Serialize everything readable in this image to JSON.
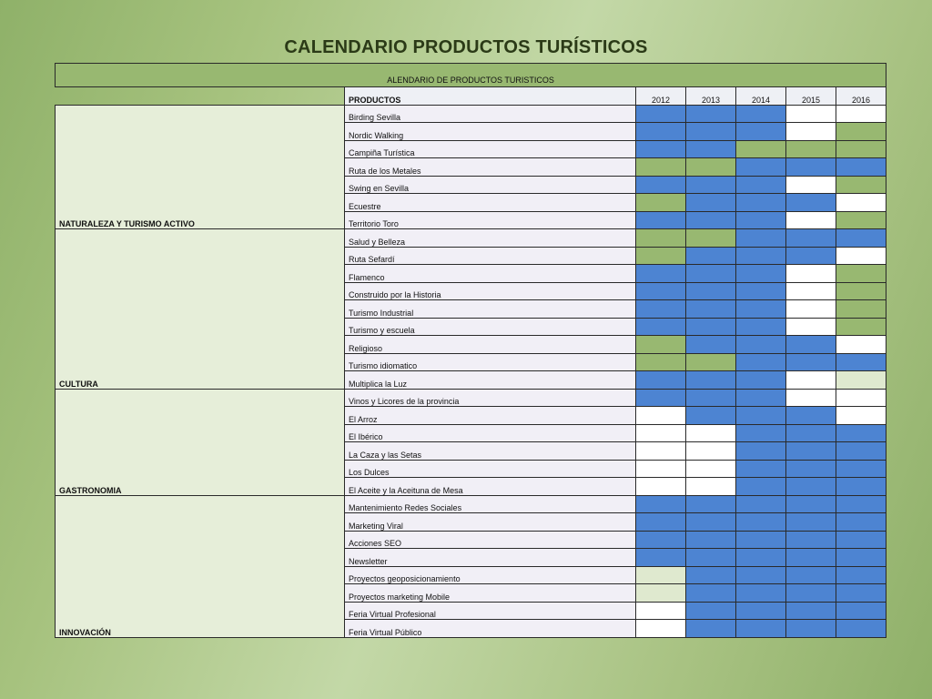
{
  "slide": {
    "title": "CALENDARIO PRODUCTOS TURÍSTICOS"
  },
  "table": {
    "banner": "ALENDARIO DE PRODUCTOS TURISTICOS",
    "products_header": "PRODUCTOS",
    "years": [
      "2012",
      "2013",
      "2014",
      "2015",
      "2016"
    ],
    "legend_colors": {
      "b": "#4d84d2",
      "g": "#98b871",
      "w": "#ffffff",
      "l": "#dfe9cf"
    },
    "categories": [
      {
        "name": "NATURALEZA Y TURISMO ACTIVO",
        "rows": [
          {
            "product": "Birding Sevilla",
            "cells": [
              "b",
              "b",
              "b",
              "w",
              "w"
            ]
          },
          {
            "product": "Nordic Walking",
            "cells": [
              "b",
              "b",
              "b",
              "w",
              "g"
            ]
          },
          {
            "product": "Campiña Turística",
            "cells": [
              "b",
              "b",
              "g",
              "g",
              "g"
            ]
          },
          {
            "product": "Ruta de los Metales",
            "cells": [
              "g",
              "g",
              "b",
              "b",
              "b"
            ]
          },
          {
            "product": "Swing en Sevilla",
            "cells": [
              "b",
              "b",
              "b",
              "w",
              "g"
            ]
          },
          {
            "product": "Ecuestre",
            "cells": [
              "g",
              "b",
              "b",
              "b",
              "w"
            ]
          },
          {
            "product": "Territorio Toro",
            "cells": [
              "b",
              "b",
              "b",
              "w",
              "g"
            ]
          }
        ]
      },
      {
        "name": "CULTURA",
        "rows": [
          {
            "product": "Salud y Belleza",
            "cells": [
              "g",
              "g",
              "b",
              "b",
              "b"
            ]
          },
          {
            "product": "Ruta Sefardí",
            "cells": [
              "g",
              "b",
              "b",
              "b",
              "w"
            ]
          },
          {
            "product": "Flamenco",
            "cells": [
              "b",
              "b",
              "b",
              "w",
              "g"
            ]
          },
          {
            "product": "Construido por la Historia",
            "cells": [
              "b",
              "b",
              "b",
              "w",
              "g"
            ]
          },
          {
            "product": "Turismo Industrial",
            "cells": [
              "b",
              "b",
              "b",
              "w",
              "g"
            ]
          },
          {
            "product": "Turismo y escuela",
            "cells": [
              "b",
              "b",
              "b",
              "w",
              "g"
            ]
          },
          {
            "product": "Religioso",
            "cells": [
              "g",
              "b",
              "b",
              "b",
              "w"
            ]
          },
          {
            "product": "Turismo idiomatico",
            "cells": [
              "g",
              "g",
              "b",
              "b",
              "b"
            ]
          },
          {
            "product": "Multiplica la Luz",
            "cells": [
              "b",
              "b",
              "b",
              "w",
              "l"
            ]
          }
        ]
      },
      {
        "name": "GASTRONOMIA",
        "rows": [
          {
            "product": "Vinos y Licores de la provincia",
            "cells": [
              "b",
              "b",
              "b",
              "w",
              "w"
            ]
          },
          {
            "product": "El Arroz",
            "cells": [
              "w",
              "b",
              "b",
              "b",
              "w"
            ]
          },
          {
            "product": "El Ibérico",
            "cells": [
              "w",
              "w",
              "b",
              "b",
              "b"
            ]
          },
          {
            "product": "La Caza y las Setas",
            "cells": [
              "w",
              "w",
              "b",
              "b",
              "b"
            ]
          },
          {
            "product": "Los Dulces",
            "cells": [
              "w",
              "w",
              "b",
              "b",
              "b"
            ]
          },
          {
            "product": "El Aceite y la Aceituna de Mesa",
            "cells": [
              "w",
              "w",
              "b",
              "b",
              "b"
            ]
          }
        ]
      },
      {
        "name": "INNOVACIÓN",
        "rows": [
          {
            "product": "Mantenimiento Redes Sociales",
            "cells": [
              "b",
              "b",
              "b",
              "b",
              "b"
            ]
          },
          {
            "product": "Marketing Viral",
            "cells": [
              "b",
              "b",
              "b",
              "b",
              "b"
            ]
          },
          {
            "product": "Acciones SEO",
            "cells": [
              "b",
              "b",
              "b",
              "b",
              "b"
            ]
          },
          {
            "product": "Newsletter",
            "cells": [
              "b",
              "b",
              "b",
              "b",
              "b"
            ]
          },
          {
            "product": "Proyectos geoposicionamiento",
            "cells": [
              "l",
              "b",
              "b",
              "b",
              "b"
            ]
          },
          {
            "product": "Proyectos marketing Mobile",
            "cells": [
              "l",
              "b",
              "b",
              "b",
              "b"
            ]
          },
          {
            "product": "Feria Virtual Profesional",
            "cells": [
              "w",
              "b",
              "b",
              "b",
              "b"
            ]
          },
          {
            "product": "Feria Virtual Público",
            "cells": [
              "w",
              "b",
              "b",
              "b",
              "b"
            ]
          }
        ]
      }
    ]
  }
}
